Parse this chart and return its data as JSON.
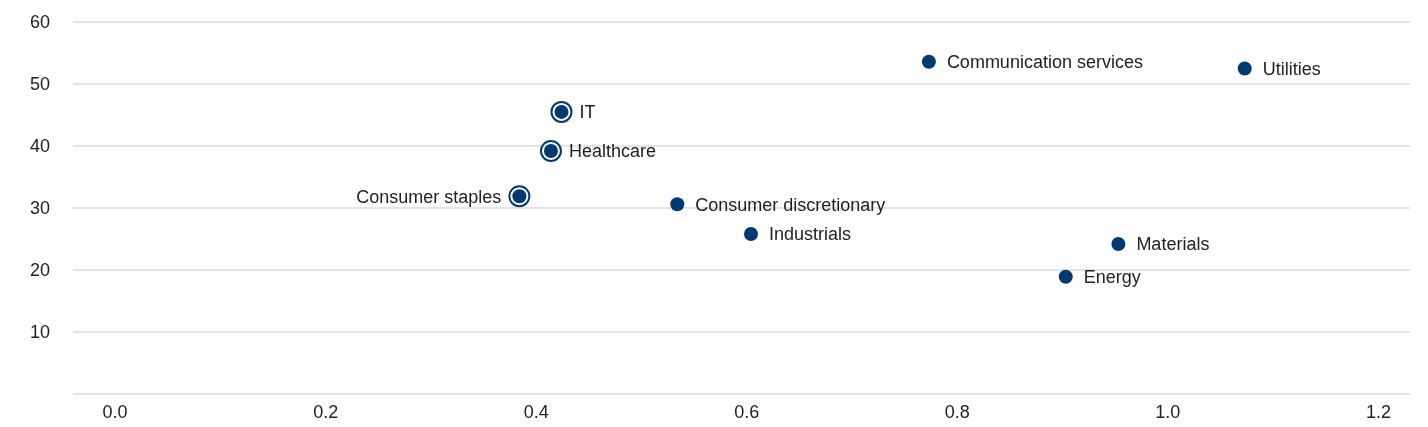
{
  "chart_data": {
    "type": "scatter",
    "xlim": [
      -0.04,
      1.23
    ],
    "xticks": [
      {
        "value": 0,
        "label": "0.0"
      },
      0.2,
      0.4,
      0.6,
      0.8,
      {
        "value": 1,
        "label": "1.0"
      },
      1.2
    ],
    "ylim": [
      0,
      60
    ],
    "yticks": [
      {
        "value": 0,
        "label": null
      },
      10,
      20,
      30,
      40,
      50,
      60
    ],
    "grid": "y",
    "marker": "circle",
    "series": [
      {
        "color": "#003a70",
        "x": [
          0.773,
          1.073,
          0.534,
          0.604,
          0.953,
          0.903
        ],
        "values": [
          53.6,
          52.5,
          30.6,
          25.8,
          24.2,
          18.9
        ]
      },
      {
        "color": "#003a70",
        "x": [
          0.424,
          0.414,
          0.384
        ],
        "values": [
          45.5,
          39.2,
          31.9
        ]
      }
    ],
    "annotations": [
      {
        "text": "Communication services",
        "x": 0.773,
        "y": 53.6
      },
      {
        "text": "Utilities",
        "x": 1.073,
        "y": 52.5
      },
      {
        "text": "Consumer discretionary",
        "x": 0.534,
        "y": 30.6
      },
      {
        "text": "Industrials",
        "x": 0.604,
        "y": 25.8
      },
      {
        "text": "Materials",
        "x": 0.953,
        "y": 24.2
      },
      {
        "text": "Energy",
        "x": 0.903,
        "y": 18.9
      },
      {
        "text": "IT",
        "x": 0.424,
        "y": 45.5
      },
      {
        "text": "Healthcare",
        "x": 0.414,
        "y": 39.2
      },
      {
        "text": "Consumer staples",
        "x": 0.384,
        "y": 31.9
      }
    ]
  }
}
